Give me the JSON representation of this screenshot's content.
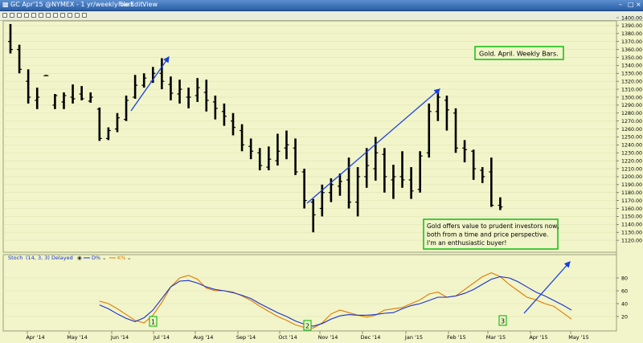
{
  "window": {
    "title": "GC Apr'15 @NYMEX - 1 yr/weekly bars",
    "menu": [
      "File",
      "Edit",
      "View"
    ]
  },
  "colors": {
    "background": "#f1f5c9",
    "bar": "#000000",
    "d_line": "#1a2fcf",
    "k_line": "#e07a00",
    "annotation_border": "#1dbf1d",
    "arrow": "#1a3fe0"
  },
  "chart_data": [
    {
      "type": "ohlc",
      "title": "",
      "ylabel": "",
      "ylim": [
        1110,
        1400
      ],
      "yticks": [
        1120,
        1130,
        1140,
        1150,
        1160,
        1170,
        1180,
        1190,
        1200,
        1210,
        1220,
        1230,
        1240,
        1250,
        1260,
        1270,
        1280,
        1290,
        1300,
        1310,
        1320,
        1330,
        1340,
        1350,
        1360,
        1370,
        1380,
        1390,
        1400
      ],
      "xlabels": [
        "Apr '14",
        "May '14",
        "Jun '14",
        "Jul '14",
        "Aug '14",
        "Sep '14",
        "Oct '14",
        "Nov '14",
        "Dec '14",
        "Jan '15",
        "Feb '15",
        "Mar '15",
        "Apr '15",
        "May '15"
      ],
      "bars": [
        {
          "o": 1370,
          "h": 1392,
          "l": 1355,
          "c": 1360
        },
        {
          "o": 1360,
          "h": 1366,
          "l": 1330,
          "c": 1335
        },
        {
          "o": 1320,
          "h": 1335,
          "l": 1292,
          "c": 1300
        },
        {
          "o": 1296,
          "h": 1312,
          "l": 1285,
          "c": 1300
        },
        {
          "o": 1327,
          "h": 1328,
          "l": 1327,
          "c": 1327
        },
        {
          "o": 1290,
          "h": 1304,
          "l": 1285,
          "c": 1302
        },
        {
          "o": 1294,
          "h": 1306,
          "l": 1285,
          "c": 1302
        },
        {
          "o": 1300,
          "h": 1316,
          "l": 1292,
          "c": 1298
        },
        {
          "o": 1304,
          "h": 1314,
          "l": 1296,
          "c": 1298
        },
        {
          "o": 1295,
          "h": 1306,
          "l": 1293,
          "c": 1300
        },
        {
          "o": 1285,
          "h": 1287,
          "l": 1245,
          "c": 1248
        },
        {
          "o": 1248,
          "h": 1262,
          "l": 1246,
          "c": 1258
        },
        {
          "o": 1260,
          "h": 1280,
          "l": 1256,
          "c": 1274
        },
        {
          "o": 1272,
          "h": 1302,
          "l": 1270,
          "c": 1296
        },
        {
          "o": 1300,
          "h": 1328,
          "l": 1298,
          "c": 1315
        },
        {
          "o": 1315,
          "h": 1330,
          "l": 1312,
          "c": 1324
        },
        {
          "o": 1320,
          "h": 1338,
          "l": 1318,
          "c": 1330
        },
        {
          "o": 1330,
          "h": 1349,
          "l": 1310,
          "c": 1320
        },
        {
          "o": 1316,
          "h": 1326,
          "l": 1296,
          "c": 1305
        },
        {
          "o": 1304,
          "h": 1322,
          "l": 1292,
          "c": 1310
        },
        {
          "o": 1300,
          "h": 1312,
          "l": 1286,
          "c": 1300
        },
        {
          "o": 1302,
          "h": 1324,
          "l": 1294,
          "c": 1312
        },
        {
          "o": 1306,
          "h": 1322,
          "l": 1282,
          "c": 1296
        },
        {
          "o": 1294,
          "h": 1302,
          "l": 1272,
          "c": 1286
        },
        {
          "o": 1282,
          "h": 1292,
          "l": 1264,
          "c": 1276
        },
        {
          "o": 1270,
          "h": 1280,
          "l": 1252,
          "c": 1262
        },
        {
          "o": 1258,
          "h": 1266,
          "l": 1232,
          "c": 1240
        },
        {
          "o": 1238,
          "h": 1248,
          "l": 1222,
          "c": 1232
        },
        {
          "o": 1230,
          "h": 1236,
          "l": 1208,
          "c": 1214
        },
        {
          "o": 1212,
          "h": 1238,
          "l": 1208,
          "c": 1222
        },
        {
          "o": 1220,
          "h": 1254,
          "l": 1214,
          "c": 1232
        },
        {
          "o": 1236,
          "h": 1258,
          "l": 1222,
          "c": 1240
        },
        {
          "o": 1236,
          "h": 1248,
          "l": 1202,
          "c": 1206
        },
        {
          "o": 1206,
          "h": 1210,
          "l": 1160,
          "c": 1170
        },
        {
          "o": 1168,
          "h": 1172,
          "l": 1130,
          "c": 1152
        },
        {
          "o": 1160,
          "h": 1190,
          "l": 1150,
          "c": 1180
        },
        {
          "o": 1180,
          "h": 1198,
          "l": 1168,
          "c": 1190
        },
        {
          "o": 1188,
          "h": 1204,
          "l": 1176,
          "c": 1194
        },
        {
          "o": 1196,
          "h": 1224,
          "l": 1160,
          "c": 1168
        },
        {
          "o": 1168,
          "h": 1212,
          "l": 1150,
          "c": 1200
        },
        {
          "o": 1200,
          "h": 1236,
          "l": 1186,
          "c": 1214
        },
        {
          "o": 1210,
          "h": 1250,
          "l": 1195,
          "c": 1230
        },
        {
          "o": 1228,
          "h": 1236,
          "l": 1180,
          "c": 1200
        },
        {
          "o": 1196,
          "h": 1215,
          "l": 1172,
          "c": 1200
        },
        {
          "o": 1200,
          "h": 1232,
          "l": 1186,
          "c": 1196
        },
        {
          "o": 1196,
          "h": 1212,
          "l": 1172,
          "c": 1182
        },
        {
          "o": 1184,
          "h": 1232,
          "l": 1180,
          "c": 1226
        },
        {
          "o": 1230,
          "h": 1292,
          "l": 1224,
          "c": 1282
        },
        {
          "o": 1282,
          "h": 1310,
          "l": 1270,
          "c": 1300
        },
        {
          "o": 1296,
          "h": 1302,
          "l": 1258,
          "c": 1284
        },
        {
          "o": 1280,
          "h": 1286,
          "l": 1230,
          "c": 1236
        },
        {
          "o": 1236,
          "h": 1246,
          "l": 1218,
          "c": 1234
        },
        {
          "o": 1232,
          "h": 1234,
          "l": 1196,
          "c": 1210
        },
        {
          "o": 1208,
          "h": 1212,
          "l": 1192,
          "c": 1200
        },
        {
          "o": 1206,
          "h": 1224,
          "l": 1162,
          "c": 1164
        },
        {
          "o": 1164,
          "h": 1174,
          "l": 1158,
          "c": 1162
        }
      ],
      "annotations": [
        {
          "label": "Gold. April. Weekly Bars."
        },
        {
          "label": "Gold offers value to prudent investors now,\nboth from a time and price perspective.\nI'm an enthusiastic buyer!"
        }
      ]
    },
    {
      "type": "line",
      "title": "Stoch",
      "params": "(14, 3, 3) Delayed",
      "ylim": [
        0,
        100
      ],
      "yticks": [
        20,
        40,
        60,
        80
      ],
      "series": [
        {
          "name": "D%",
          "color": "#1a2fcf",
          "values": [
            null,
            null,
            null,
            null,
            null,
            null,
            null,
            null,
            null,
            null,
            38,
            32,
            24,
            17,
            12,
            18,
            30,
            48,
            66,
            75,
            76,
            72,
            66,
            62,
            60,
            57,
            53,
            48,
            40,
            33,
            26,
            20,
            13,
            8,
            5,
            9,
            16,
            21,
            23,
            22,
            22,
            23,
            25,
            26,
            32,
            37,
            40,
            45,
            50,
            50,
            52,
            56,
            62,
            70,
            78,
            82,
            80,
            74,
            66,
            58,
            52,
            45,
            38,
            30
          ]
        },
        {
          "name": "K%",
          "color": "#e07a00",
          "values": [
            null,
            null,
            null,
            null,
            null,
            null,
            null,
            null,
            null,
            null,
            44,
            40,
            32,
            23,
            14,
            10,
            22,
            42,
            66,
            80,
            84,
            78,
            64,
            60,
            60,
            58,
            52,
            45,
            36,
            28,
            20,
            14,
            7,
            3,
            2,
            10,
            24,
            30,
            26,
            22,
            19,
            22,
            30,
            32,
            34,
            40,
            46,
            55,
            58,
            50,
            52,
            62,
            72,
            82,
            88,
            82,
            70,
            60,
            50,
            46,
            40,
            36,
            26,
            16
          ]
        }
      ],
      "markers": [
        "1",
        "2",
        "3"
      ]
    }
  ]
}
